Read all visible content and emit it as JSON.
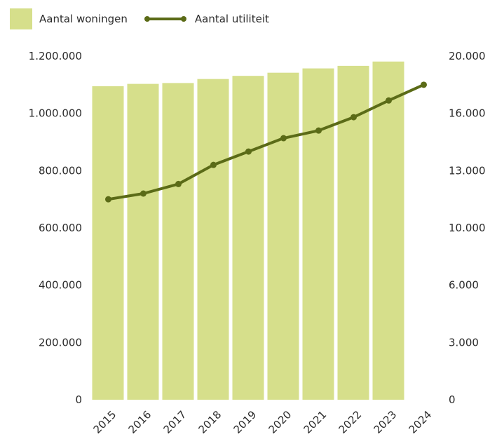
{
  "colors": {
    "bar": "#d6df8b",
    "line": "#5b6b17"
  },
  "legend": [
    {
      "label": "Aantal woningen",
      "kind": "bar"
    },
    {
      "label": "Aantal utiliteit",
      "kind": "line"
    }
  ],
  "chart_data": {
    "type": "bar+line",
    "title": "",
    "categories": [
      "2015",
      "2016",
      "2017",
      "2018",
      "2019",
      "2020",
      "2021",
      "2022",
      "2023",
      "2024"
    ],
    "series": [
      {
        "name": "Aantal woningen",
        "type": "bar",
        "axis": "left",
        "values": [
          1095000,
          1103000,
          1106000,
          1120000,
          1131000,
          1142000,
          1157000,
          1166000,
          1181000,
          null
        ]
      },
      {
        "name": "Aantal utiliteit",
        "type": "line",
        "axis": "right",
        "values": [
          11500,
          11800,
          12300,
          13300,
          14000,
          14700,
          15100,
          15800,
          16900,
          18000
        ]
      }
    ],
    "y_left": {
      "ticks": [
        "0",
        "200.000",
        "400.000",
        "600.000",
        "800.000",
        "1.000.000",
        "1.200.000"
      ],
      "ylim": [
        0,
        1200000
      ]
    },
    "y_right": {
      "ticks": [
        "0",
        "3.000",
        "6.000",
        "10.000",
        "13.000",
        "16.000",
        "20.000"
      ]
    },
    "grid": false,
    "legend_position": "top-left"
  }
}
